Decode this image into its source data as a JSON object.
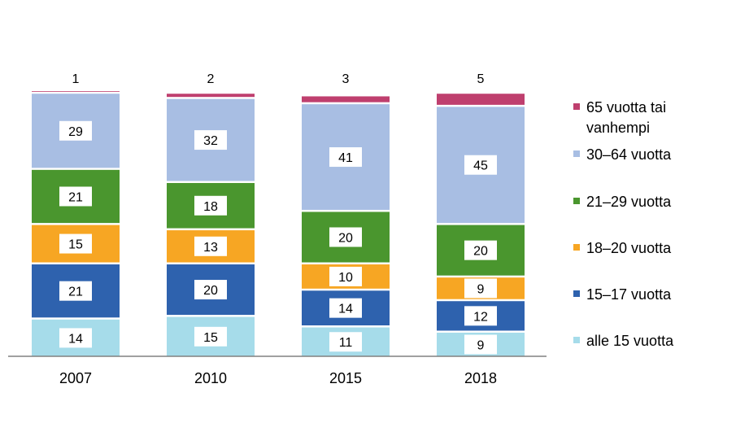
{
  "chart_data": {
    "type": "bar",
    "stacked": true,
    "title": "",
    "xlabel": "",
    "ylabel": "",
    "categories": [
      "2007",
      "2010",
      "2015",
      "2018"
    ],
    "series": [
      {
        "name": "alle 15 vuotta",
        "values": [
          14,
          15,
          11,
          9
        ],
        "color": "#a6dcea"
      },
      {
        "name": "15–17 vuotta",
        "values": [
          21,
          20,
          14,
          12
        ],
        "color": "#2e62ae"
      },
      {
        "name": "18–20 vuotta",
        "values": [
          15,
          13,
          10,
          9
        ],
        "color": "#f7a623"
      },
      {
        "name": "21–29 vuotta",
        "values": [
          21,
          18,
          20,
          20
        ],
        "color": "#4a962e"
      },
      {
        "name": "30–64 vuotta",
        "values": [
          29,
          32,
          41,
          45
        ],
        "color": "#a8bee3"
      },
      {
        "name": "65 vuotta tai vanhempi",
        "legend_lines": [
          "65 vuotta tai",
          "vanhempi"
        ],
        "values": [
          1,
          2,
          3,
          5
        ],
        "color": "#bf3f6e"
      }
    ],
    "legend_position": "right",
    "gridlines": false
  }
}
